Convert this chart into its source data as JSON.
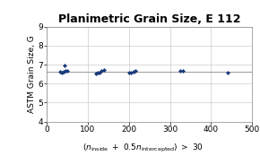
{
  "title": "Planimetric Grain Size, E 112",
  "ylabel": "ASTM Grain Size, G",
  "xlim": [
    0,
    500
  ],
  "ylim": [
    4,
    9
  ],
  "xticks": [
    0,
    100,
    200,
    300,
    400,
    500
  ],
  "yticks": [
    4,
    5,
    6,
    7,
    8,
    9
  ],
  "x_data": [
    33,
    36,
    40,
    43,
    46,
    50,
    120,
    125,
    128,
    133,
    140,
    200,
    205,
    212,
    215,
    325,
    332,
    440
  ],
  "y_data": [
    6.63,
    6.6,
    6.62,
    6.95,
    6.65,
    6.65,
    6.55,
    6.58,
    6.6,
    6.65,
    6.72,
    6.58,
    6.6,
    6.62,
    6.65,
    6.65,
    6.68,
    6.6
  ],
  "marker_color": "#1a3a7a",
  "marker": "D",
  "marker_size": 2.5,
  "line_color": "#888888",
  "line_width": 0.6,
  "bg_color": "#ffffff",
  "grid_color": "#cccccc",
  "title_fontsize": 9,
  "label_fontsize": 6.5,
  "tick_fontsize": 6.5
}
